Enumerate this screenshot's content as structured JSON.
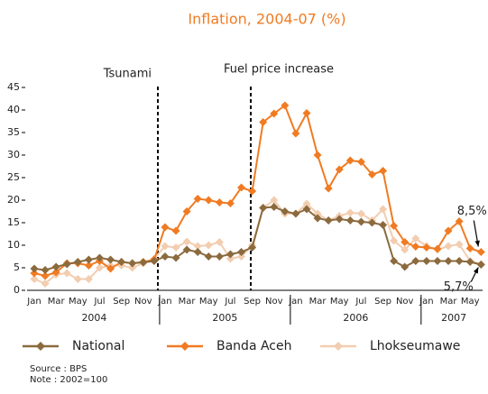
{
  "chart_data": {
    "type": "line",
    "title": "Inflation, 2004-07 (%)",
    "categories": [
      "Jan",
      null,
      "Mar",
      null,
      "May",
      null,
      "Jul",
      null,
      "Sep",
      null,
      "Nov",
      null,
      "Jan",
      null,
      "Mar",
      null,
      "May",
      null,
      "Jul",
      null,
      "Sep",
      null,
      "Nov",
      null,
      "Jan",
      null,
      "Mar",
      null,
      "May",
      null,
      "Jul",
      null,
      "Sep",
      null,
      "Nov",
      null,
      "Jan",
      null,
      "Mar",
      null,
      "May",
      null
    ],
    "years": [
      "2004",
      "2005",
      "2006",
      "2007"
    ],
    "series": [
      {
        "name": "National",
        "color": "#8b6a3e",
        "values": [
          4.8,
          4.5,
          5.2,
          5.8,
          6.3,
          6.8,
          7.2,
          6.8,
          6.3,
          6.0,
          6.2,
          6.5,
          7.5,
          7.2,
          9.0,
          8.5,
          7.5,
          7.5,
          8.0,
          8.5,
          9.5,
          18.3,
          18.5,
          17.5,
          17.0,
          18.0,
          16.0,
          15.5,
          15.8,
          15.5,
          15.2,
          15.0,
          14.5,
          6.5,
          5.2,
          6.5,
          6.5,
          6.5,
          6.5,
          6.5,
          6.3,
          5.7
        ],
        "value_labels": [
          null,
          null,
          null,
          null,
          null,
          null,
          null,
          null,
          null,
          null,
          null,
          null,
          null,
          null,
          null,
          null,
          null,
          null,
          null,
          null,
          null,
          null,
          null,
          null,
          null,
          null,
          null,
          null,
          null,
          null,
          null,
          null,
          null,
          null,
          null,
          null,
          null,
          null,
          null,
          null,
          null,
          "5,7%"
        ]
      },
      {
        "name": "Banda Aceh",
        "color": "#f07b22",
        "values": [
          3.8,
          3.2,
          4.0,
          6.0,
          6.0,
          5.5,
          6.5,
          4.8,
          6.3,
          6.0,
          6.3,
          6.8,
          14.0,
          13.2,
          17.5,
          20.3,
          20.0,
          19.5,
          19.3,
          22.8,
          22.0,
          37.3,
          39.2,
          41.0,
          34.8,
          39.3,
          30.0,
          22.6,
          26.8,
          28.8,
          28.5,
          25.7,
          26.5,
          14.3,
          10.7,
          9.7,
          9.5,
          9.2,
          13.2,
          15.3,
          9.3,
          8.5
        ],
        "value_labels": [
          null,
          null,
          null,
          null,
          null,
          null,
          null,
          null,
          null,
          null,
          null,
          null,
          null,
          null,
          null,
          null,
          null,
          null,
          null,
          null,
          null,
          null,
          null,
          null,
          null,
          null,
          null,
          null,
          null,
          null,
          null,
          null,
          null,
          null,
          null,
          null,
          null,
          null,
          null,
          null,
          null,
          "8,5%"
        ]
      },
      {
        "name": "Lhokseumawe",
        "color": "#f2cdb0",
        "values": [
          2.5,
          1.5,
          3.5,
          3.8,
          2.5,
          2.5,
          5.0,
          5.5,
          5.5,
          5.0,
          6.0,
          7.0,
          9.8,
          9.5,
          10.8,
          9.8,
          10.0,
          10.7,
          7.0,
          7.5,
          10.0,
          18.3,
          20.0,
          17.0,
          17.0,
          19.2,
          17.0,
          15.5,
          16.5,
          17.2,
          17.0,
          15.5,
          18.0,
          11.0,
          9.0,
          11.5,
          9.8,
          9.0,
          9.8,
          10.2,
          6.5,
          5.8
        ]
      }
    ],
    "annotations": [
      "Tsunami",
      "Fuel price increase"
    ],
    "source": "Source : BPS",
    "note": "Note : 2002=100",
    "ylim": [
      0,
      45
    ],
    "yticks": [
      0,
      5,
      10,
      15,
      20,
      25,
      30,
      35,
      40,
      45
    ],
    "grid": false,
    "legend": "bottom"
  }
}
